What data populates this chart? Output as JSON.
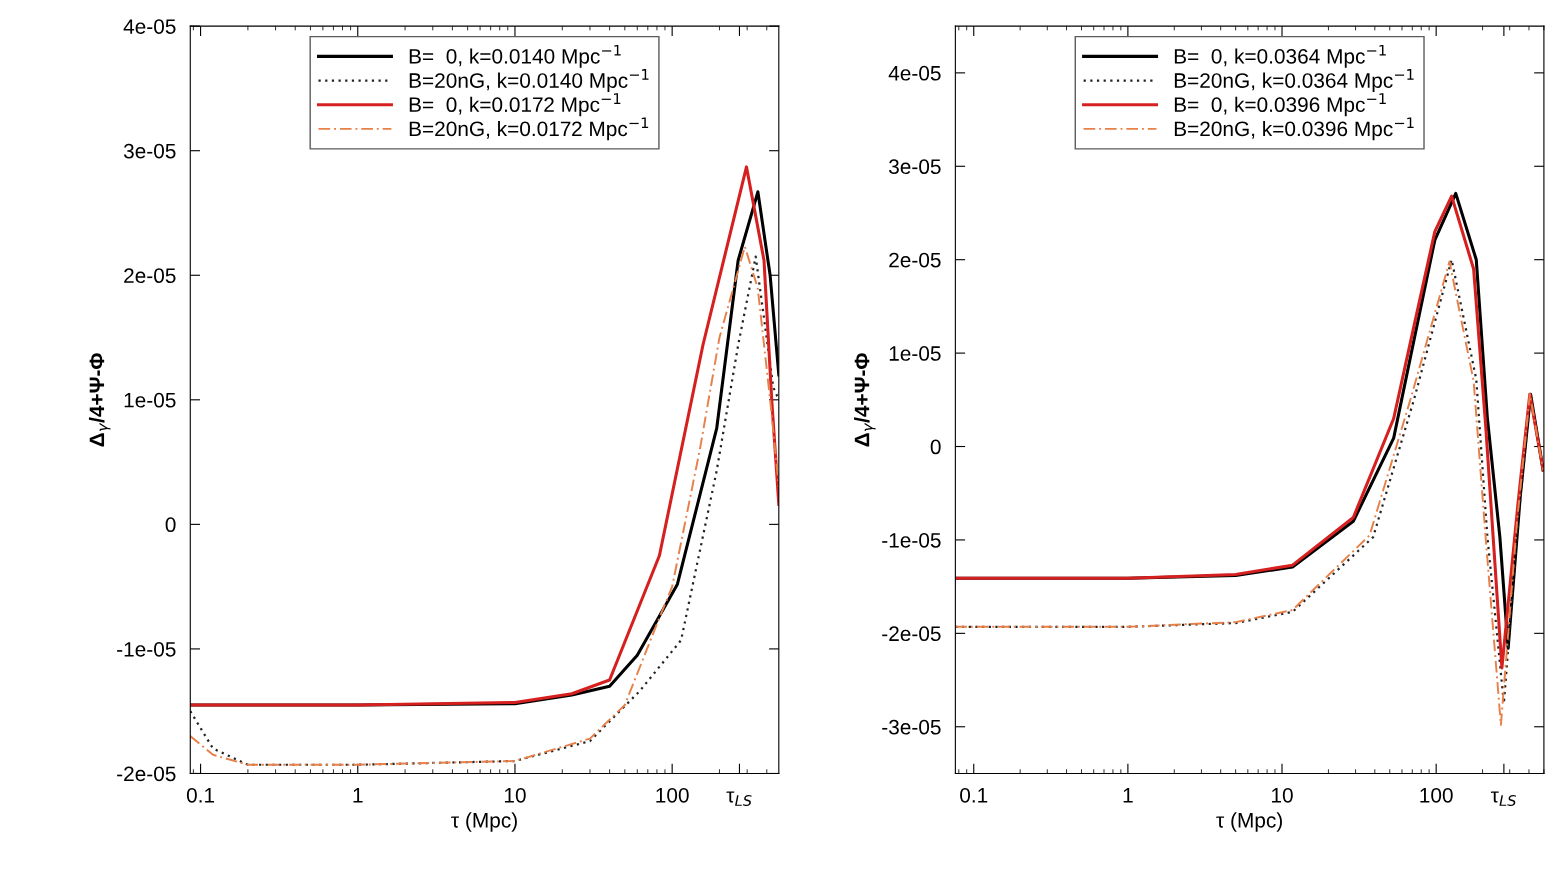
{
  "chart_data": [
    {
      "type": "line",
      "xlabel": "τ (Mpc)",
      "ylabel": "Δ$_{γ}$/4+Ψ-Φ",
      "log": "x",
      "legend": "top",
      "xlim": [
        0.086,
        477
      ],
      "ylim": [
        -2e-05,
        4e-05
      ],
      "xticks": [
        0.1,
        1,
        10,
        100,
        {
          "value": 268,
          "label": "τ$_{LS}$"
        }
      ],
      "yticks": [
        {
          "value": -2e-05,
          "label": "-2e-05"
        },
        {
          "value": -1e-05,
          "label": "-1e-05"
        },
        0,
        {
          "value": 1e-05,
          "label": "1e-05"
        },
        {
          "value": 2e-05,
          "label": "2e-05"
        },
        {
          "value": 3e-05,
          "label": "3e-05"
        },
        {
          "value": 4e-05,
          "label": "4e-05"
        }
      ],
      "series": [
        {
          "name": "B=  0, k=0.0140 Mpc$^{−1}$",
          "color": "#000000",
          "line_style": "solid",
          "x": [
            0.086,
            1,
            10,
            23,
            40,
            60,
            108,
            192,
            263,
            351,
            420,
            477
          ],
          "values": [
            -1.45e-05,
            -1.45e-05,
            -1.44e-05,
            -1.37e-05,
            -1.3e-05,
            -1.05e-05,
            -4.8e-06,
            7.7e-06,
            2.12e-05,
            2.67e-05,
            2e-05,
            1.2e-05
          ]
        },
        {
          "name": "B=20nG, k=0.0140 Mpc$^{−1}$",
          "color": "#222222",
          "line_style": "dotted",
          "x": [
            0.086,
            0.12,
            0.2,
            1,
            10,
            30,
            62,
            114,
            192,
            263,
            340,
            440,
            477
          ],
          "values": [
            -1.5e-05,
            -1.8e-05,
            -1.93e-05,
            -1.93e-05,
            -1.9e-05,
            -1.74e-05,
            -1.34e-05,
            -9.3e-06,
            4.3e-06,
            1.44e-05,
            2.15e-05,
            1.1e-05,
            1e-05
          ]
        },
        {
          "name": "B=  0, k=0.0172 Mpc$^{−1}$",
          "color": "#d62020",
          "line_style": "solid",
          "x": [
            0.086,
            1,
            10,
            23,
            40,
            83,
            157,
            297,
            384,
            430,
            477
          ],
          "values": [
            -1.45e-05,
            -1.45e-05,
            -1.43e-05,
            -1.36e-05,
            -1.25e-05,
            -2.5e-06,
            1.44e-05,
            2.87e-05,
            2.12e-05,
            1e-05,
            1.6e-06
          ]
        },
        {
          "name": "B=20nG, k=0.0172 Mpc$^{−1}$",
          "color": "#e8804a",
          "line_style": "dashed",
          "x": [
            0.086,
            0.12,
            0.2,
            1,
            10,
            30,
            50,
            80,
            100,
            150,
            200,
            290,
            350,
            420,
            477
          ],
          "values": [
            -1.7e-05,
            -1.85e-05,
            -1.93e-05,
            -1.93e-05,
            -1.9e-05,
            -1.72e-05,
            -1.45e-05,
            -8e-06,
            -5e-06,
            6e-06,
            1.5e-05,
            2.23e-05,
            1.9e-05,
            1e-05,
            3e-06
          ]
        }
      ]
    },
    {
      "type": "line",
      "xlabel": "τ (Mpc)",
      "ylabel": "Δ$_{γ}$/4+Ψ-Φ",
      "log": "x",
      "legend": "top",
      "xlim": [
        0.076,
        500
      ],
      "ylim": [
        -3.5e-05,
        4.5e-05
      ],
      "xticks": [
        0.1,
        1,
        10,
        100,
        {
          "value": 275,
          "label": "τ$_{LS}$"
        }
      ],
      "yticks": [
        {
          "value": -3e-05,
          "label": "-3e-05"
        },
        {
          "value": -2e-05,
          "label": "-2e-05"
        },
        {
          "value": -1e-05,
          "label": "-1e-05"
        },
        0,
        {
          "value": 1e-05,
          "label": "1e-05"
        },
        {
          "value": 2e-05,
          "label": "2e-05"
        },
        {
          "value": 3e-05,
          "label": "3e-05"
        },
        {
          "value": 4e-05,
          "label": "4e-05"
        }
      ],
      "series": [
        {
          "name": "B=  0, k=0.0364 Mpc$^{−1}$",
          "color": "#000000",
          "line_style": "solid",
          "x": [
            0.076,
            1,
            5,
            11.7,
            29,
            53,
            72,
            98,
            134,
            182,
            215,
            259,
            293,
            351,
            410,
            494
          ],
          "values": [
            -1.41e-05,
            -1.41e-05,
            -1.38e-05,
            -1.29e-05,
            -8e-06,
            9e-07,
            1.15e-05,
            2.21e-05,
            2.71e-05,
            2e-05,
            3e-06,
            -9.7e-06,
            -2.16e-05,
            -5.4e-06,
            5.6e-06,
            -2.5e-06
          ]
        },
        {
          "name": "B=20nG, k=0.0364 Mpc$^{−1}$",
          "color": "#222222",
          "line_style": "dotted",
          "x": [
            0.076,
            1,
            5,
            11.7,
            39,
            72,
            126,
            182,
            215,
            275,
            340,
            410,
            494
          ],
          "values": [
            -1.93e-05,
            -1.93e-05,
            -1.89e-05,
            -1.77e-05,
            -9.7e-06,
            5.1e-06,
            2e-05,
            7.2e-06,
            -9.7e-06,
            -2.75e-05,
            -8e-06,
            5.6e-06,
            -2.5e-06
          ]
        },
        {
          "name": "B=  0, k=0.0396 Mpc$^{−1}$",
          "color": "#d62020",
          "line_style": "solid",
          "x": [
            0.076,
            1,
            5,
            11.7,
            29,
            53,
            72,
            98,
            126,
            175,
            210,
            267,
            340,
            405,
            494
          ],
          "values": [
            -1.41e-05,
            -1.41e-05,
            -1.37e-05,
            -1.27e-05,
            -7.6e-06,
            3e-06,
            1.3e-05,
            2.3e-05,
            2.68e-05,
            1.9e-05,
            2e-06,
            -2.37e-05,
            -6e-06,
            5.6e-06,
            -2.5e-06
          ]
        },
        {
          "name": "B=20nG, k=0.0396 Mpc$^{−1}$",
          "color": "#e8804a",
          "line_style": "dashed",
          "x": [
            0.076,
            1,
            5,
            11.7,
            37,
            68,
            122,
            175,
            210,
            263,
            335,
            405,
            494
          ],
          "values": [
            -1.93e-05,
            -1.93e-05,
            -1.88e-05,
            -1.75e-05,
            -9.5e-06,
            5e-06,
            1.98e-05,
            7e-06,
            -1e-05,
            -2.98e-05,
            -8e-06,
            5.6e-06,
            -2.5e-06
          ]
        }
      ]
    }
  ]
}
